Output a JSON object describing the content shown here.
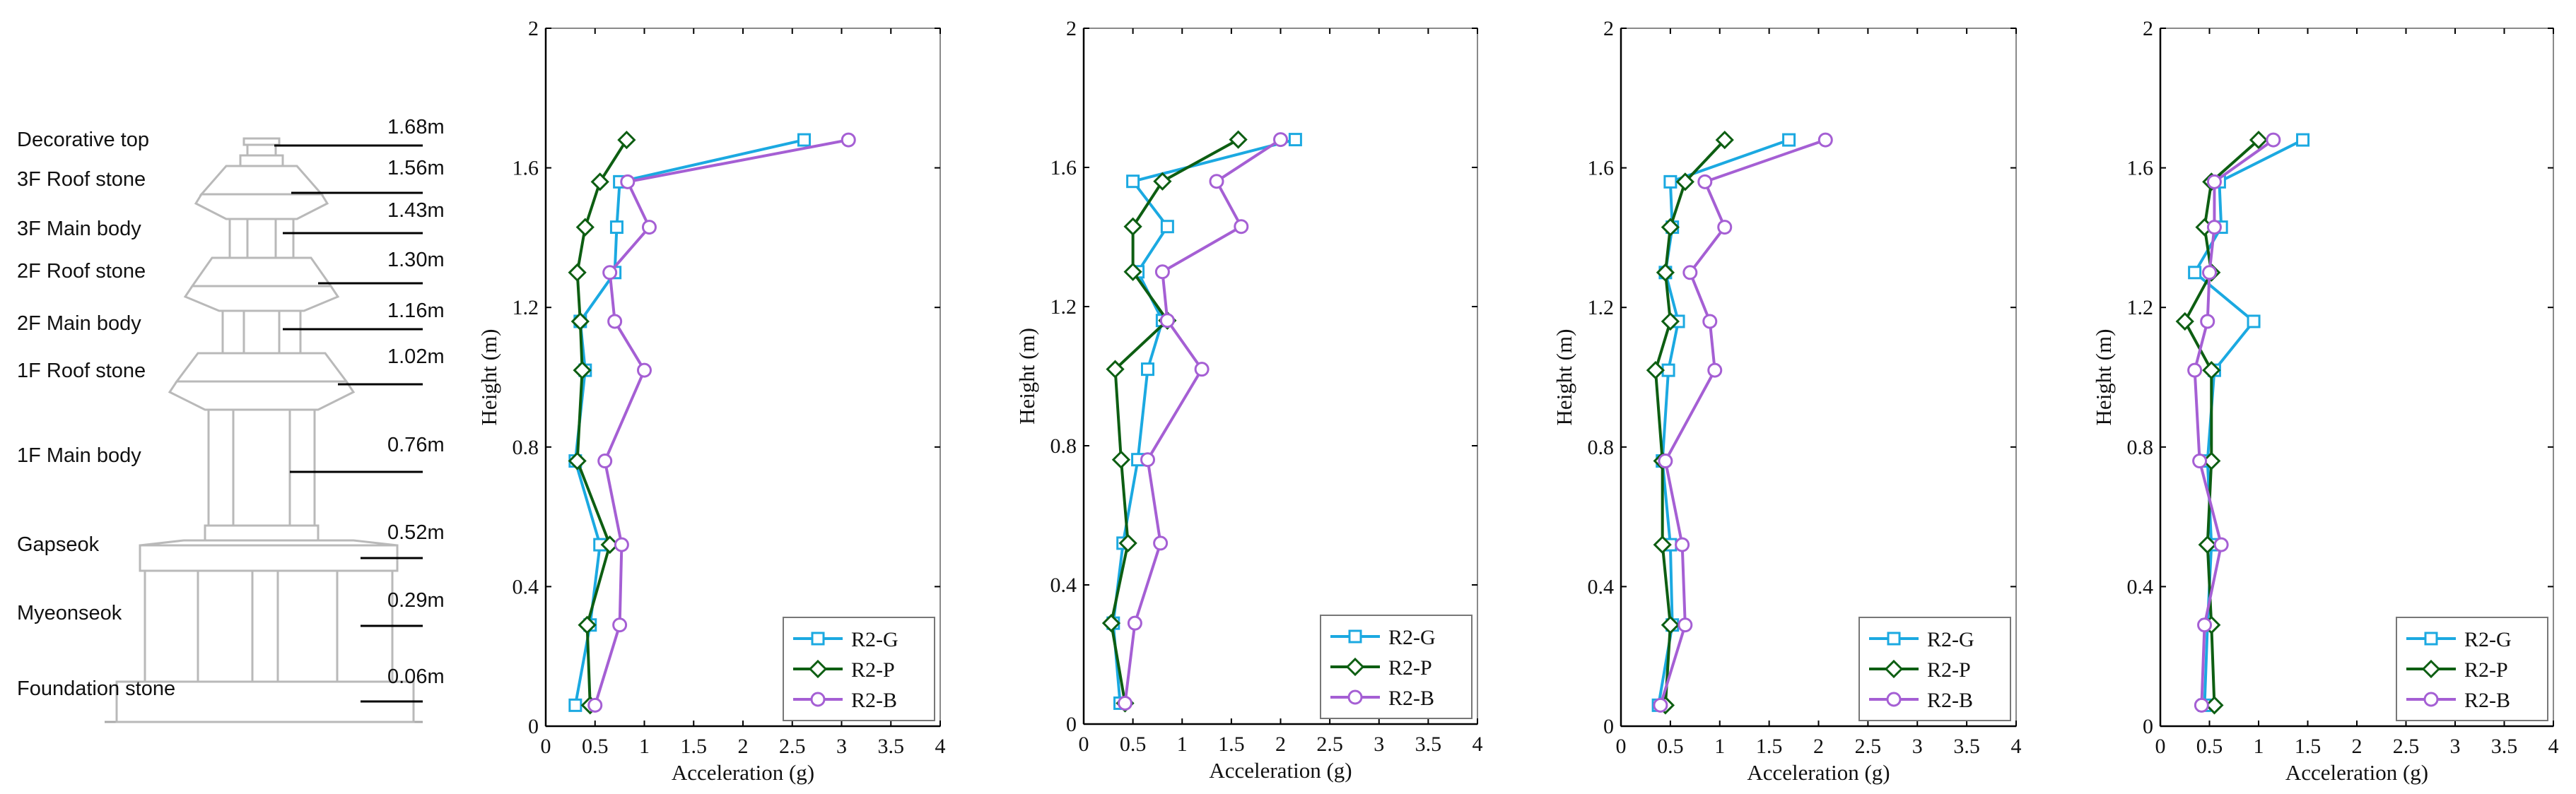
{
  "pagoda": {
    "levels": [
      {
        "name": "Decorative top",
        "height_label": "1.68m"
      },
      {
        "name": "3F Roof stone",
        "height_label": "1.56m"
      },
      {
        "name": "3F Main body",
        "height_label": "1.43m"
      },
      {
        "name": "2F Roof stone",
        "height_label": "1.30m"
      },
      {
        "name": "2F Main body",
        "height_label": "1.16m"
      },
      {
        "name": "1F Roof stone",
        "height_label": "1.02m"
      },
      {
        "name": "1F Main body",
        "height_label": "0.76m"
      },
      {
        "name": "Gapseok",
        "height_label": "0.52m"
      },
      {
        "name": "Myeonseok",
        "height_label": "0.29m"
      },
      {
        "name": "Foundation stone",
        "height_label": "0.06m"
      }
    ]
  },
  "colors": {
    "R2-G": "#1ba9e1",
    "R2-P": "#0d5e12",
    "R2-B": "#a55fd4"
  },
  "chart_data": [
    {
      "type": "line",
      "title": "",
      "xlabel": "Acceleration (g)",
      "ylabel": "Height (m)",
      "xlim": [
        0,
        4
      ],
      "ylim": [
        0,
        2
      ],
      "x_ticks": [
        "0",
        "0.5",
        "1",
        "1.5",
        "2",
        "2.5",
        "3",
        "3.5",
        "4"
      ],
      "y_ticks": [
        "0",
        "0.4",
        "0.8",
        "1.2",
        "1.6",
        "2"
      ],
      "legend_position": "bottom-right",
      "heights": [
        0.06,
        0.29,
        0.52,
        0.76,
        1.02,
        1.16,
        1.3,
        1.43,
        1.56,
        1.68
      ],
      "series": [
        {
          "name": "R2-G",
          "marker": "square",
          "values": [
            0.3,
            0.45,
            0.55,
            0.3,
            0.4,
            0.35,
            0.7,
            0.72,
            0.75,
            2.62
          ]
        },
        {
          "name": "R2-P",
          "marker": "diamond",
          "values": [
            0.45,
            0.42,
            0.65,
            0.32,
            0.37,
            0.35,
            0.32,
            0.4,
            0.55,
            0.82
          ]
        },
        {
          "name": "R2-B",
          "marker": "circle",
          "values": [
            0.5,
            0.75,
            0.77,
            0.6,
            1.0,
            0.7,
            0.65,
            1.05,
            0.83,
            3.07
          ]
        }
      ]
    },
    {
      "type": "line",
      "title": "",
      "xlabel": "Acceleration (g)",
      "ylabel": "Height (m)",
      "xlim": [
        0,
        4
      ],
      "ylim": [
        0,
        2
      ],
      "x_ticks": [
        "0",
        "0.5",
        "1",
        "1.5",
        "2",
        "2.5",
        "3",
        "3.5",
        "4"
      ],
      "y_ticks": [
        "0",
        "0.4",
        "0.8",
        "1.2",
        "1.6",
        "2"
      ],
      "legend_position": "bottom-right",
      "heights": [
        0.06,
        0.29,
        0.52,
        0.76,
        1.02,
        1.16,
        1.3,
        1.43,
        1.56,
        1.68
      ],
      "series": [
        {
          "name": "R2-G",
          "marker": "square",
          "values": [
            0.37,
            0.3,
            0.4,
            0.55,
            0.65,
            0.8,
            0.55,
            0.85,
            0.5,
            2.15
          ]
        },
        {
          "name": "R2-P",
          "marker": "diamond",
          "values": [
            0.42,
            0.28,
            0.45,
            0.38,
            0.32,
            0.85,
            0.5,
            0.5,
            0.8,
            1.57
          ]
        },
        {
          "name": "R2-B",
          "marker": "circle",
          "values": [
            0.42,
            0.52,
            0.78,
            0.65,
            1.2,
            0.85,
            0.8,
            1.6,
            1.35,
            2.0
          ]
        }
      ]
    },
    {
      "type": "line",
      "title": "",
      "xlabel": "Acceleration (g)",
      "ylabel": "Height (m)",
      "xlim": [
        0,
        4
      ],
      "ylim": [
        0,
        2
      ],
      "x_ticks": [
        "0",
        "0.5",
        "1",
        "1.5",
        "2",
        "2.5",
        "3",
        "3.5",
        "4"
      ],
      "y_ticks": [
        "0",
        "0.4",
        "0.8",
        "1.2",
        "1.6",
        "2"
      ],
      "legend_position": "bottom-right",
      "heights": [
        0.06,
        0.29,
        0.52,
        0.76,
        1.02,
        1.16,
        1.3,
        1.43,
        1.56,
        1.68
      ],
      "series": [
        {
          "name": "R2-G",
          "marker": "square",
          "values": [
            0.38,
            0.52,
            0.5,
            0.42,
            0.48,
            0.58,
            0.45,
            0.52,
            0.5,
            1.7
          ]
        },
        {
          "name": "R2-P",
          "marker": "diamond",
          "values": [
            0.45,
            0.5,
            0.42,
            0.42,
            0.35,
            0.5,
            0.45,
            0.5,
            0.65,
            1.05
          ]
        },
        {
          "name": "R2-B",
          "marker": "circle",
          "values": [
            0.4,
            0.65,
            0.62,
            0.45,
            0.95,
            0.9,
            0.7,
            1.05,
            0.85,
            2.07
          ]
        }
      ]
    },
    {
      "type": "line",
      "title": "",
      "xlabel": "Acceleration (g)",
      "ylabel": "Height (m)",
      "xlim": [
        0,
        4
      ],
      "ylim": [
        0,
        2
      ],
      "x_ticks": [
        "0",
        "0.5",
        "1",
        "1.5",
        "2",
        "2.5",
        "3",
        "3.5",
        "4"
      ],
      "y_ticks": [
        "0",
        "0.4",
        "0.8",
        "1.2",
        "1.6",
        "2"
      ],
      "legend_position": "bottom-right",
      "heights": [
        0.06,
        0.29,
        0.52,
        0.76,
        1.02,
        1.16,
        1.3,
        1.43,
        1.56,
        1.68
      ],
      "series": [
        {
          "name": "R2-G",
          "marker": "square",
          "values": [
            0.45,
            0.48,
            0.52,
            0.48,
            0.55,
            0.95,
            0.35,
            0.62,
            0.6,
            1.45
          ]
        },
        {
          "name": "R2-P",
          "marker": "diamond",
          "values": [
            0.55,
            0.52,
            0.48,
            0.52,
            0.52,
            0.25,
            0.52,
            0.45,
            0.52,
            1.0
          ]
        },
        {
          "name": "R2-B",
          "marker": "circle",
          "values": [
            0.42,
            0.45,
            0.62,
            0.4,
            0.35,
            0.48,
            0.5,
            0.55,
            0.55,
            1.15
          ]
        }
      ]
    }
  ]
}
